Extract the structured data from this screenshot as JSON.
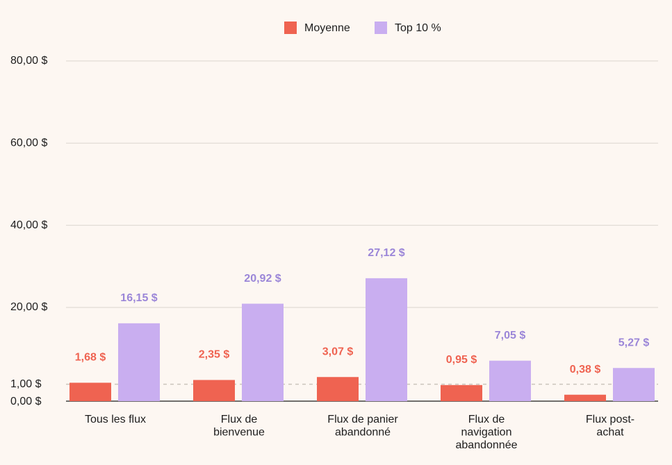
{
  "chart_data": {
    "type": "bar",
    "title": "",
    "xlabel": "",
    "ylabel": "",
    "categories": [
      [
        "Tous les flux"
      ],
      [
        "Flux de",
        "bienvenue"
      ],
      [
        "Flux de panier",
        "abandonné"
      ],
      [
        "Flux de",
        "navigation",
        "abandonnée"
      ],
      [
        "Flux post-",
        "achat"
      ]
    ],
    "series": [
      {
        "name": "Moyenne",
        "color": "#ef6351",
        "values": [
          1.68,
          2.35,
          3.07,
          0.95,
          0.38
        ],
        "labels": [
          "1,68 $",
          "2,35 $",
          "3,07 $",
          "0,95 $",
          "0,38 $"
        ]
      },
      {
        "name": "Top 10 %",
        "color": "#c9aef0",
        "label_color": "#9b86d8",
        "values": [
          16.15,
          20.92,
          27.12,
          7.05,
          5.27
        ],
        "labels": [
          "16,15 $",
          "20,92 $",
          "27,12 $",
          "7,05 $",
          "5,27 $"
        ]
      }
    ],
    "y_ticks": [
      {
        "value": 0,
        "label": "0,00 $"
      },
      {
        "value": 1,
        "label": "1,00 $"
      },
      {
        "value": 20,
        "label": "20,00 $"
      },
      {
        "value": 40,
        "label": "40,00 $"
      },
      {
        "value": 60,
        "label": "60,00 $"
      },
      {
        "value": 80,
        "label": "80,00 $"
      }
    ],
    "ylim": [
      0,
      80
    ],
    "y_scale": "broken: compressed between 0 and 1, linear above",
    "reference_line": {
      "value": 1,
      "style": "dashed"
    },
    "grid": true,
    "legend": "top-center"
  }
}
